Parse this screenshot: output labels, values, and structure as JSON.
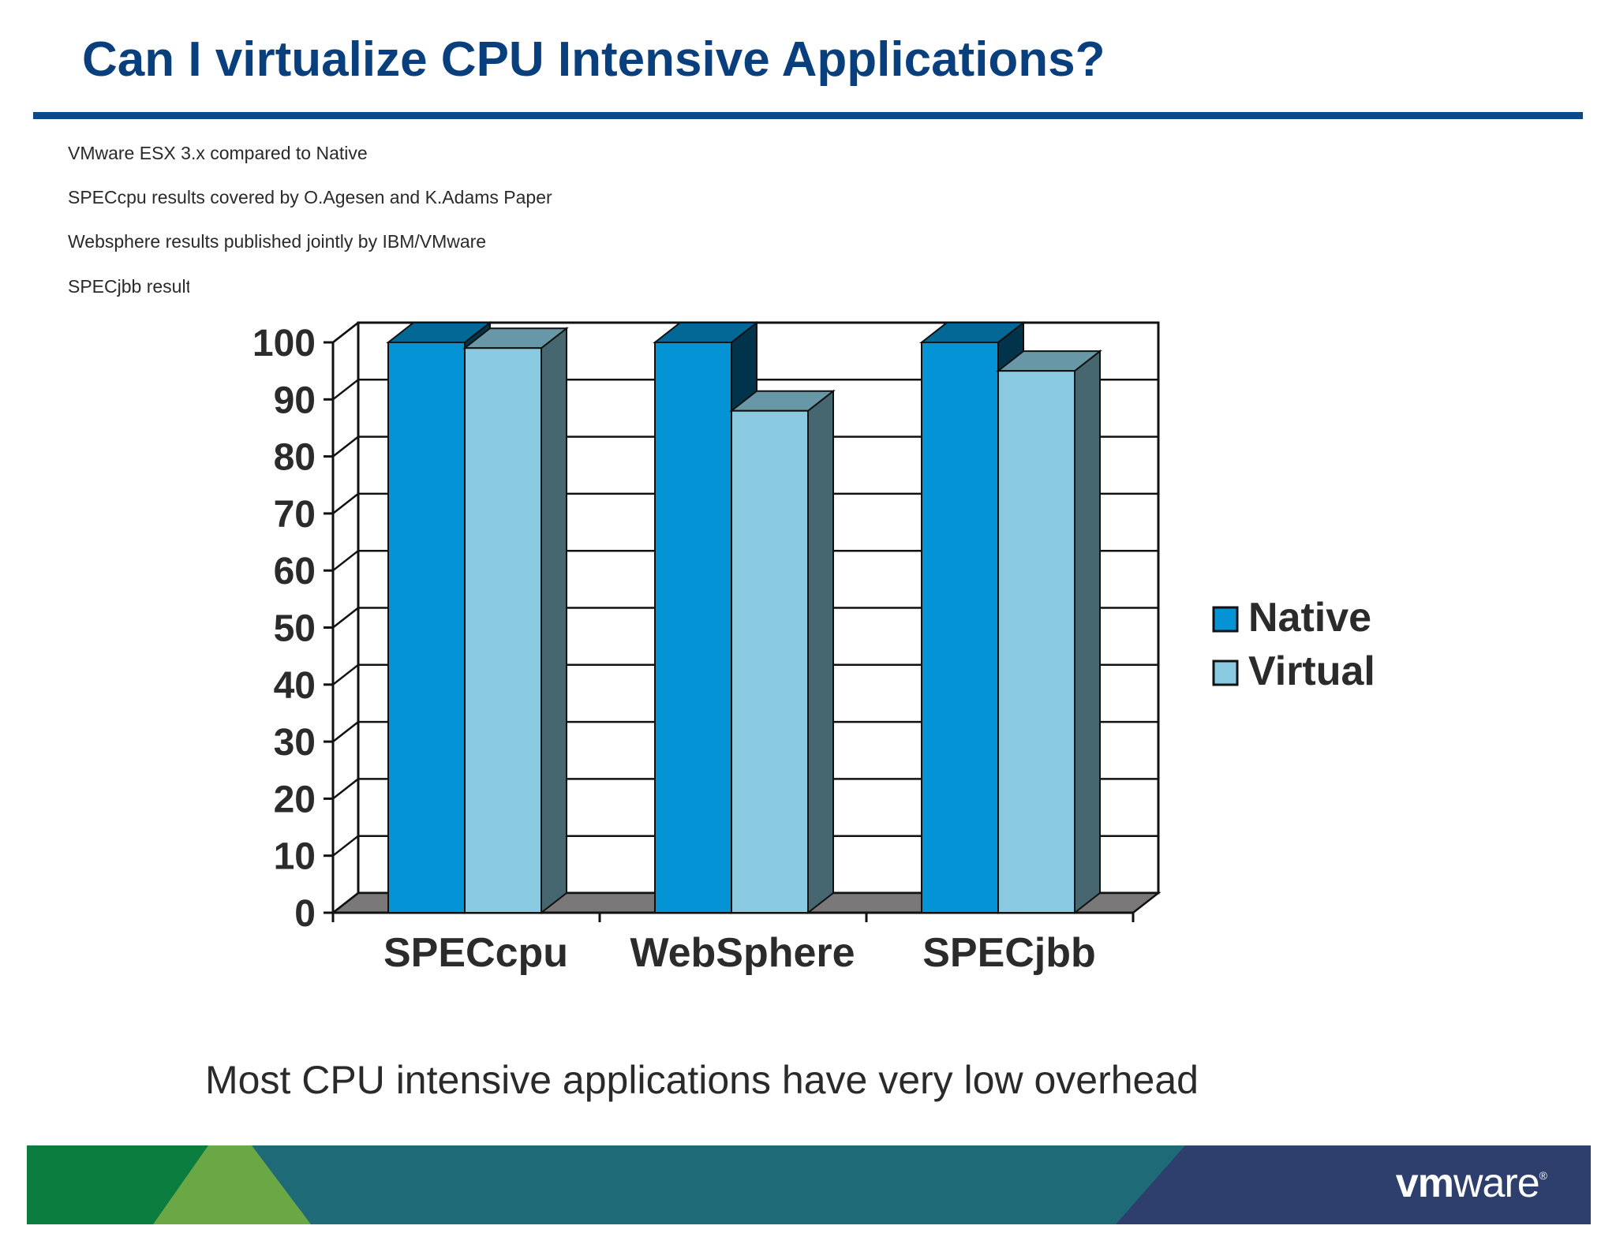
{
  "slide": {
    "title": "Can I virtualize CPU Intensive Applications?",
    "notes": [
      "VMware ESX 3.x compared to Native",
      "SPECcpu results covered by O.Agesen and K.Adams Paper",
      "Websphere results published jointly by IBM/VMware",
      "SPECjbb results"
    ],
    "caption": "Most CPU intensive applications have very low overhead",
    "logo_bold": "vm",
    "logo_rest": "ware",
    "logo_mark": "®"
  },
  "colors": {
    "title": "#0a3f7e",
    "native": "#0494d6",
    "virtual": "#8acae0",
    "floor": "#7a7878",
    "band_green": "#0b7d3e",
    "band_lightgreen": "#6aa845",
    "band_teal": "#1f6a77",
    "band_navy": "#2e3e6d"
  },
  "chart_data": {
    "type": "bar",
    "categories": [
      "SPECcpu",
      "WebSphere",
      "SPECjbb"
    ],
    "series": [
      {
        "name": "Native",
        "values": [
          100,
          100,
          100
        ]
      },
      {
        "name": "Virtual",
        "values": [
          99,
          88,
          95
        ]
      }
    ],
    "ylim": [
      0,
      100
    ],
    "yticks": [
      0,
      10,
      20,
      30,
      40,
      50,
      60,
      70,
      80,
      90,
      100
    ],
    "grid": true,
    "three_d": true,
    "legend_position": "right"
  }
}
